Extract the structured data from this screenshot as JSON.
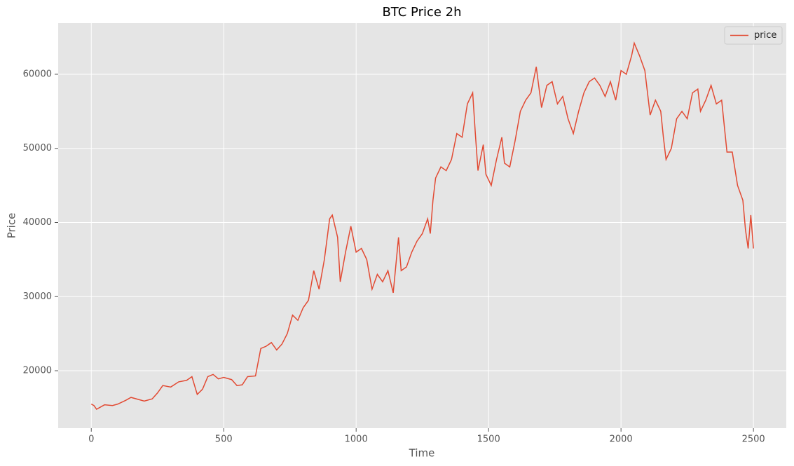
{
  "chart_data": {
    "type": "line",
    "title": "BTC Price 2h",
    "x_label": "Time",
    "y_label": "Price",
    "x": [
      0,
      10,
      20,
      50,
      80,
      100,
      130,
      150,
      180,
      200,
      230,
      250,
      270,
      300,
      330,
      360,
      380,
      390,
      400,
      420,
      440,
      460,
      480,
      500,
      530,
      550,
      570,
      590,
      620,
      640,
      660,
      680,
      700,
      720,
      740,
      760,
      780,
      800,
      820,
      840,
      860,
      880,
      900,
      910,
      930,
      940,
      960,
      980,
      1000,
      1020,
      1040,
      1060,
      1080,
      1100,
      1120,
      1140,
      1160,
      1170,
      1190,
      1210,
      1230,
      1250,
      1270,
      1280,
      1290,
      1300,
      1320,
      1340,
      1360,
      1380,
      1400,
      1420,
      1440,
      1450,
      1460,
      1480,
      1490,
      1510,
      1530,
      1550,
      1560,
      1580,
      1600,
      1620,
      1640,
      1660,
      1680,
      1700,
      1720,
      1740,
      1760,
      1780,
      1800,
      1820,
      1840,
      1860,
      1880,
      1900,
      1920,
      1940,
      1960,
      1980,
      2000,
      2020,
      2040,
      2050,
      2070,
      2090,
      2100,
      2110,
      2130,
      2150,
      2160,
      2170,
      2190,
      2210,
      2230,
      2250,
      2270,
      2290,
      2300,
      2320,
      2340,
      2360,
      2380,
      2390,
      2400,
      2420,
      2440,
      2460,
      2470,
      2480,
      2490,
      2500
    ],
    "series": [
      {
        "name": "price",
        "color": "#e24a33",
        "values": [
          15500,
          15300,
          14800,
          15400,
          15300,
          15500,
          16000,
          16400,
          16100,
          15900,
          16200,
          17000,
          18000,
          17800,
          18500,
          18700,
          19200,
          18000,
          16800,
          17500,
          19200,
          19500,
          18900,
          19100,
          18800,
          18000,
          18100,
          19200,
          19300,
          23000,
          23300,
          23800,
          22800,
          23600,
          25000,
          27500,
          26800,
          28500,
          29500,
          33500,
          31000,
          35000,
          40500,
          41000,
          38000,
          32000,
          36000,
          39500,
          36000,
          36500,
          35000,
          31000,
          33000,
          32000,
          33500,
          30500,
          38000,
          33500,
          34000,
          36000,
          37500,
          38500,
          40500,
          38500,
          43000,
          46000,
          47500,
          47000,
          48500,
          52000,
          51500,
          56000,
          57500,
          52000,
          47000,
          50500,
          46500,
          45000,
          48500,
          51500,
          48000,
          47500,
          51000,
          55000,
          56500,
          57500,
          61000,
          55500,
          58500,
          59000,
          56000,
          57000,
          54000,
          52000,
          55000,
          57500,
          59000,
          59500,
          58500,
          57000,
          59000,
          56500,
          60500,
          60000,
          62500,
          64200,
          62500,
          60500,
          57500,
          54500,
          56500,
          55000,
          51500,
          48500,
          50000,
          54000,
          55000,
          54000,
          57500,
          58000,
          55000,
          56500,
          58500,
          56000,
          56500,
          53000,
          49500,
          49500,
          45000,
          43000,
          39000,
          36500,
          41000,
          36500
        ]
      }
    ],
    "xlim": [
      -125,
      2624
    ],
    "ylim": [
      12250,
      66900
    ],
    "xticks": [
      0,
      500,
      1000,
      1500,
      2000,
      2500
    ],
    "yticks": [
      20000,
      30000,
      40000,
      50000,
      60000
    ],
    "grid": true,
    "legend": "upper right"
  }
}
